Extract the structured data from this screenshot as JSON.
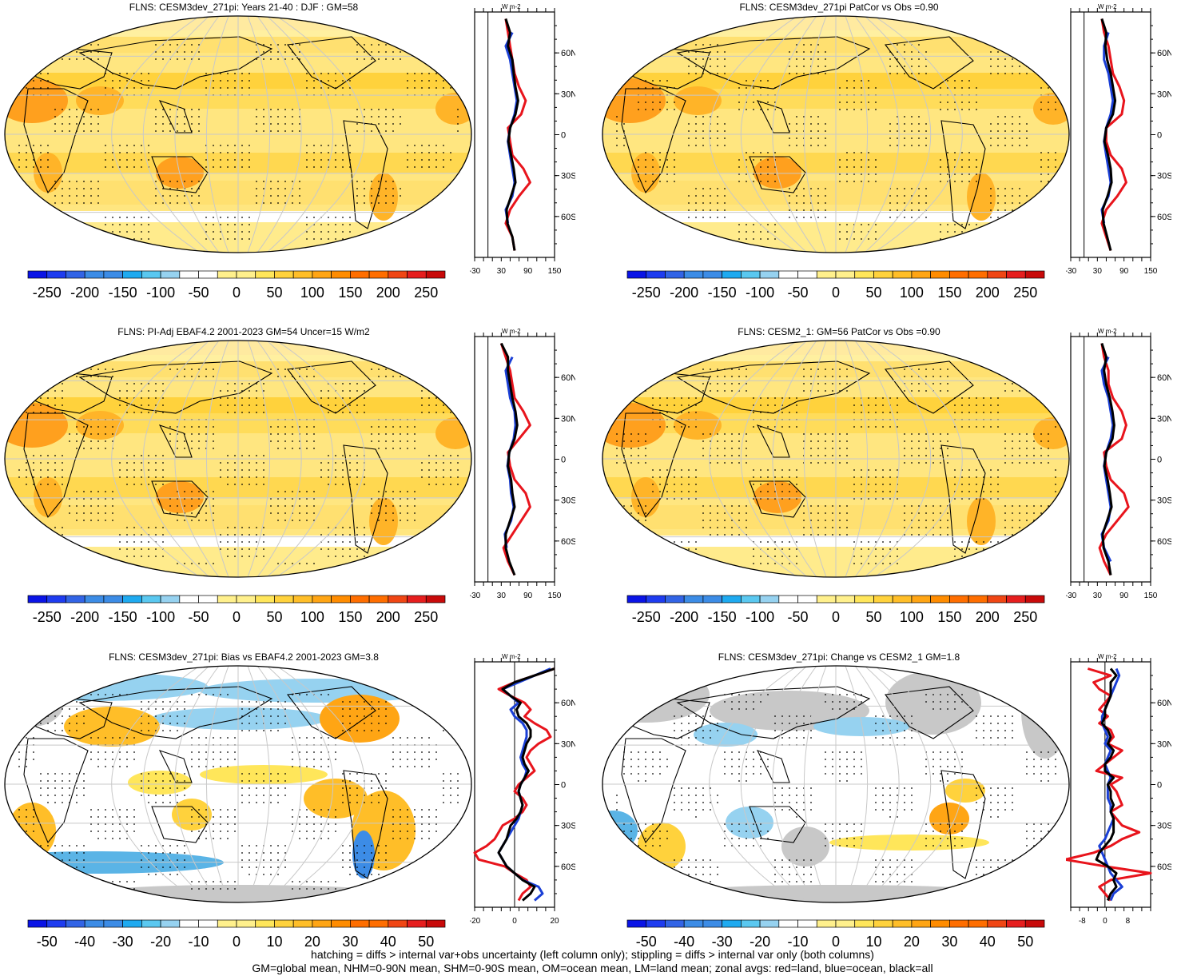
{
  "footer": {
    "line1": "hatching = diffs > internal var+obs uncertainty (left column only); stippling = diffs > internal var only (both columns)",
    "line2": "GM=global mean, NHM=0-90N mean, SHM=0-90S mean, OM=ocean mean, LM=land mean; zonal avgs: red=land, blue=ocean, black=all"
  },
  "colors": {
    "land": "#e8141c",
    "ocean": "#1a3fd6",
    "all": "#000000",
    "grid": "#c8c8c8",
    "missing": "#c8c8c8"
  },
  "zonal_unit": "W m-2",
  "lat_ticks": [
    "60N",
    "30N",
    "0",
    "30S",
    "60S"
  ],
  "chart_data": [
    {
      "type": "heatmap",
      "title": "FLNS: CESM3dev_271pi: Years 21-40 : DJF : GM=58",
      "colorbar": {
        "labels": [
          "-250",
          "-200",
          "-150",
          "-100",
          "-50",
          "0",
          "50",
          "100",
          "150",
          "200",
          "250"
        ],
        "range": [
          -275,
          275
        ],
        "kind": "abs"
      },
      "zonal": {
        "xticks": [
          "-30",
          "30",
          "90",
          "150"
        ],
        "xrange": [
          -30,
          150
        ],
        "lat": [
          85,
          75,
          65,
          55,
          45,
          35,
          25,
          15,
          5,
          -5,
          -15,
          -25,
          -35,
          -45,
          -55,
          -65,
          -75,
          -85
        ],
        "land": [
          40,
          45,
          50,
          55,
          60,
          70,
          85,
          75,
          45,
          50,
          55,
          80,
          95,
          70,
          50,
          40,
          55,
          60
        ],
        "ocean": [
          null,
          55,
          40,
          50,
          55,
          60,
          65,
          60,
          50,
          45,
          50,
          55,
          60,
          55,
          40,
          45,
          null,
          null
        ],
        "all": [
          40,
          50,
          45,
          55,
          58,
          62,
          68,
          62,
          50,
          46,
          52,
          58,
          62,
          52,
          42,
          44,
          55,
          60
        ]
      }
    },
    {
      "type": "heatmap",
      "title": "FLNS: CESM3dev_271pi PatCor vs Obs =0.90",
      "colorbar": {
        "labels": [
          "-250",
          "-200",
          "-150",
          "-100",
          "-50",
          "0",
          "50",
          "100",
          "150",
          "200",
          "250"
        ],
        "range": [
          -275,
          275
        ],
        "kind": "abs"
      },
      "zonal": {
        "xticks": [
          "-30",
          "30",
          "90",
          "150"
        ],
        "xrange": [
          -30,
          150
        ],
        "lat": [
          85,
          75,
          65,
          55,
          45,
          35,
          25,
          15,
          5,
          -5,
          -15,
          -25,
          -35,
          -45,
          -55,
          -65,
          -75,
          -85
        ],
        "land": [
          40,
          45,
          55,
          60,
          65,
          80,
          90,
          85,
          50,
          50,
          60,
          85,
          95,
          75,
          50,
          40,
          50,
          60
        ],
        "ocean": [
          null,
          55,
          45,
          45,
          55,
          60,
          65,
          60,
          50,
          45,
          50,
          55,
          60,
          55,
          40,
          45,
          null,
          null
        ],
        "all": [
          40,
          50,
          48,
          52,
          60,
          65,
          70,
          65,
          50,
          46,
          54,
          60,
          62,
          53,
          42,
          44,
          52,
          60
        ]
      }
    },
    {
      "type": "heatmap",
      "title": "FLNS: PI-Adj EBAF4.2 2001-2023 GM=54 Uncer=15 W/m2",
      "colorbar": {
        "labels": [
          "-250",
          "-200",
          "-150",
          "-100",
          "-50",
          "0",
          "50",
          "100",
          "150",
          "200",
          "250"
        ],
        "range": [
          -275,
          275
        ],
        "kind": "abs"
      },
      "zonal": {
        "xticks": [
          "-30",
          "30",
          "90",
          "150"
        ],
        "xrange": [
          -30,
          150
        ],
        "lat": [
          85,
          75,
          65,
          55,
          45,
          35,
          25,
          15,
          5,
          -5,
          -15,
          -25,
          -35,
          -45,
          -55,
          -65,
          -75,
          -85
        ],
        "land": [
          30,
          40,
          50,
          55,
          60,
          80,
          95,
          70,
          45,
          50,
          60,
          85,
          95,
          75,
          55,
          35,
          45,
          60
        ],
        "ocean": [
          null,
          55,
          40,
          45,
          50,
          60,
          62,
          58,
          48,
          44,
          50,
          52,
          58,
          52,
          38,
          42,
          null,
          null
        ],
        "all": [
          30,
          45,
          45,
          50,
          55,
          62,
          66,
          60,
          48,
          45,
          52,
          55,
          60,
          50,
          40,
          40,
          48,
          60
        ]
      }
    },
    {
      "type": "heatmap",
      "title": "FLNS: CESM2_1: GM=56 PatCor vs Obs =0.90",
      "colorbar": {
        "labels": [
          "-250",
          "-200",
          "-150",
          "-100",
          "-50",
          "0",
          "50",
          "100",
          "150",
          "200",
          "250"
        ],
        "range": [
          -275,
          275
        ],
        "kind": "abs"
      },
      "zonal": {
        "xticks": [
          "-30",
          "30",
          "90",
          "150"
        ],
        "xrange": [
          -30,
          150
        ],
        "lat": [
          85,
          75,
          65,
          55,
          45,
          35,
          25,
          15,
          5,
          -5,
          -15,
          -25,
          -35,
          -45,
          -55,
          -65,
          -75,
          -85
        ],
        "land": [
          40,
          45,
          55,
          55,
          65,
          85,
          95,
          85,
          45,
          50,
          60,
          90,
          100,
          75,
          50,
          35,
          45,
          60
        ],
        "ocean": [
          null,
          55,
          40,
          45,
          55,
          60,
          65,
          60,
          50,
          45,
          50,
          55,
          60,
          55,
          40,
          45,
          60,
          null
        ],
        "all": [
          40,
          50,
          45,
          50,
          58,
          64,
          68,
          64,
          50,
          46,
          53,
          58,
          62,
          52,
          42,
          44,
          55,
          60
        ]
      }
    },
    {
      "type": "heatmap",
      "title": "FLNS: CESM3dev_271pi: Bias vs EBAF4.2 2001-2023 GM=3.8",
      "colorbar": {
        "labels": [
          "-50",
          "-40",
          "-30",
          "-20",
          "-10",
          "0",
          "10",
          "20",
          "30",
          "40",
          "50"
        ],
        "range": [
          -55,
          55
        ],
        "kind": "bias"
      },
      "zonal": {
        "xticks": [
          "-20",
          "0",
          "20"
        ],
        "xrange": [
          -20,
          20
        ],
        "lat": [
          85,
          80,
          75,
          70,
          65,
          60,
          55,
          50,
          45,
          40,
          35,
          30,
          25,
          20,
          15,
          10,
          5,
          0,
          -5,
          -10,
          -15,
          -20,
          -25,
          -30,
          -35,
          -40,
          -45,
          -50,
          -55,
          -60,
          -65,
          -70,
          -75,
          -80,
          -85
        ],
        "land": [
          20,
          10,
          0,
          -8,
          -2,
          5,
          8,
          5,
          10,
          16,
          18,
          12,
          8,
          6,
          8,
          10,
          6,
          2,
          0,
          4,
          6,
          4,
          0,
          -6,
          -8,
          -10,
          -14,
          -20,
          -18,
          -5,
          0,
          6,
          8,
          4,
          2
        ],
        "ocean": [
          18,
          10,
          2,
          -6,
          -2,
          2,
          -2,
          0,
          4,
          6,
          6,
          5,
          4,
          3,
          4,
          6,
          5,
          3,
          2,
          3,
          4,
          3,
          2,
          0,
          -2,
          -4,
          -6,
          -8,
          -6,
          -4,
          0,
          4,
          12,
          14,
          10
        ],
        "all": [
          20,
          10,
          0,
          -6,
          -2,
          3,
          1,
          2,
          6,
          8,
          8,
          6,
          5,
          4,
          5,
          7,
          5,
          3,
          2,
          3,
          4,
          3,
          1,
          -2,
          -3,
          -4,
          -6,
          -8,
          -6,
          -4,
          0,
          4,
          10,
          8,
          4
        ]
      }
    },
    {
      "type": "heatmap",
      "title": "FLNS: CESM3dev_271pi: Change vs CESM2_1 GM=1.8",
      "colorbar": {
        "labels": [
          "-50",
          "-40",
          "-30",
          "-20",
          "-10",
          "0",
          "10",
          "20",
          "30",
          "40",
          "50"
        ],
        "range": [
          -55,
          55
        ],
        "kind": "bias"
      },
      "zonal": {
        "xticks": [
          "-8",
          "0",
          "8"
        ],
        "xrange": [
          -12,
          16
        ],
        "lat": [
          85,
          80,
          75,
          70,
          65,
          60,
          55,
          50,
          45,
          40,
          35,
          30,
          25,
          20,
          15,
          10,
          5,
          0,
          -5,
          -10,
          -15,
          -20,
          -25,
          -30,
          -35,
          -40,
          -45,
          -50,
          -55,
          -60,
          -65,
          -70,
          -75,
          -80,
          -85
        ],
        "land": [
          -6,
          2,
          -4,
          -2,
          2,
          0,
          -2,
          1,
          -2,
          2,
          3,
          1,
          6,
          3,
          0,
          -3,
          6,
          2,
          4,
          5,
          6,
          2,
          4,
          6,
          12,
          6,
          2,
          -4,
          -14,
          0,
          16,
          2,
          -2,
          0,
          2
        ],
        "ocean": [
          4,
          5,
          4,
          3,
          2,
          1,
          0,
          -1,
          -1,
          0,
          1,
          0,
          2,
          1,
          0,
          1,
          2,
          1,
          1,
          1,
          2,
          2,
          3,
          2,
          1,
          0,
          -2,
          -1,
          0,
          1,
          2,
          4,
          6,
          3,
          2
        ],
        "all": [
          2,
          4,
          2,
          2,
          2,
          1,
          0,
          0,
          -1,
          1,
          2,
          1,
          3,
          2,
          0,
          0,
          3,
          1,
          2,
          2,
          3,
          2,
          3,
          3,
          3,
          2,
          0,
          -2,
          -3,
          1,
          4,
          3,
          4,
          2,
          1
        ]
      }
    }
  ]
}
